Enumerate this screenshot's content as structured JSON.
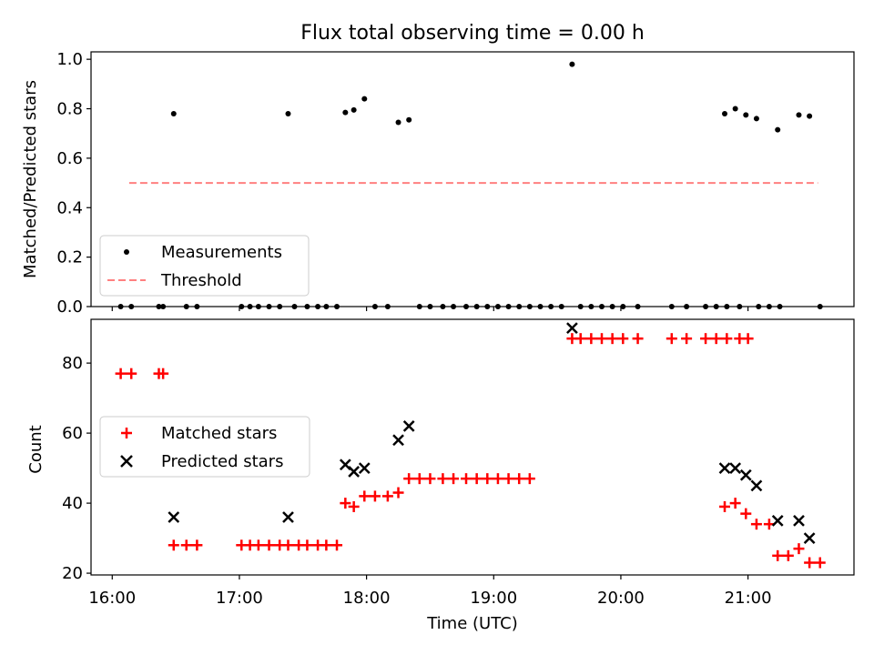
{
  "title": "Flux total observing time = 0.00 h",
  "colors": {
    "threshold": "#ff8080",
    "matched": "#ff0000",
    "predicted": "#000000",
    "measurement": "#000000"
  },
  "chart_data": [
    {
      "type": "scatter",
      "panel": "top",
      "title": "Flux total observing time = 0.00 h",
      "xlabel": "",
      "ylabel": "Matched/Predicted stars",
      "xlim": [
        "15:50",
        "21:50"
      ],
      "ylim": [
        0,
        1.03
      ],
      "yticks": [
        0.0,
        0.2,
        0.4,
        0.6,
        0.8,
        1.0
      ],
      "yticklabels": [
        "0.0",
        "0.2",
        "0.4",
        "0.6",
        "0.8",
        "1.0"
      ],
      "legend": "lower-left",
      "series": [
        {
          "name": "Measurements",
          "marker": "dot",
          "points": [
            [
              "16:04",
              0.0
            ],
            [
              "16:09",
              0.0
            ],
            [
              "16:22",
              0.0
            ],
            [
              "16:24",
              0.0
            ],
            [
              "16:29",
              0.78
            ],
            [
              "16:35",
              0.0
            ],
            [
              "16:40",
              0.0
            ],
            [
              "17:01",
              0.0
            ],
            [
              "17:05",
              0.0
            ],
            [
              "17:09",
              0.0
            ],
            [
              "17:14",
              0.0
            ],
            [
              "17:19",
              0.0
            ],
            [
              "17:23",
              0.78
            ],
            [
              "17:26",
              0.0
            ],
            [
              "17:32",
              0.0
            ],
            [
              "17:37",
              0.0
            ],
            [
              "17:41",
              0.0
            ],
            [
              "17:46",
              0.0
            ],
            [
              "17:50",
              0.785
            ],
            [
              "17:54",
              0.795
            ],
            [
              "17:59",
              0.84
            ],
            [
              "18:04",
              0.0
            ],
            [
              "18:10",
              0.0
            ],
            [
              "18:15",
              0.745
            ],
            [
              "18:20",
              0.755
            ],
            [
              "18:25",
              0.0
            ],
            [
              "18:30",
              0.0
            ],
            [
              "18:36",
              0.0
            ],
            [
              "18:41",
              0.0
            ],
            [
              "18:47",
              0.0
            ],
            [
              "18:52",
              0.0
            ],
            [
              "18:57",
              0.0
            ],
            [
              "19:02",
              0.0
            ],
            [
              "19:07",
              0.0
            ],
            [
              "19:12",
              0.0
            ],
            [
              "19:17",
              0.0
            ],
            [
              "19:22",
              0.0
            ],
            [
              "19:27",
              0.0
            ],
            [
              "19:32",
              0.0
            ],
            [
              "19:37",
              0.98
            ],
            [
              "19:41",
              0.0
            ],
            [
              "19:46",
              0.0
            ],
            [
              "19:51",
              0.0
            ],
            [
              "19:56",
              0.0
            ],
            [
              "20:01",
              0.0
            ],
            [
              "20:08",
              0.0
            ],
            [
              "20:24",
              0.0
            ],
            [
              "20:31",
              0.0
            ],
            [
              "20:40",
              0.0
            ],
            [
              "20:45",
              0.0
            ],
            [
              "20:50",
              0.0
            ],
            [
              "20:56",
              0.0
            ],
            [
              "21:05",
              0.0
            ],
            [
              "21:10",
              0.0
            ],
            [
              "21:15",
              0.0
            ],
            [
              "20:49",
              0.78
            ],
            [
              "20:54",
              0.8
            ],
            [
              "20:59",
              0.775
            ],
            [
              "21:04",
              0.76
            ],
            [
              "21:14",
              0.715
            ],
            [
              "21:24",
              0.775
            ],
            [
              "21:29",
              0.77
            ],
            [
              "21:34",
              0.0
            ]
          ]
        },
        {
          "name": "Threshold",
          "marker": "dashed-line",
          "points": [
            [
              "16:08",
              0.5
            ],
            [
              "21:33",
              0.5
            ]
          ]
        }
      ]
    },
    {
      "type": "scatter",
      "panel": "bottom",
      "xlabel": "Time (UTC)",
      "ylabel": "Count",
      "xlim": [
        "15:50",
        "21:50"
      ],
      "ylim": [
        19.5,
        92.5
      ],
      "yticks": [
        20,
        40,
        60,
        80
      ],
      "yticklabels": [
        "20",
        "40",
        "60",
        "80"
      ],
      "xticks": [
        "16:00",
        "17:00",
        "18:00",
        "19:00",
        "20:00",
        "21:00"
      ],
      "xticklabels": [
        "16:00",
        "17:00",
        "18:00",
        "19:00",
        "20:00",
        "21:00"
      ],
      "legend": "center-left",
      "series": [
        {
          "name": "Matched stars",
          "marker": "plus",
          "points": [
            [
              "16:04",
              77
            ],
            [
              "16:09",
              77
            ],
            [
              "16:22",
              77
            ],
            [
              "16:24",
              77
            ],
            [
              "16:29",
              28
            ],
            [
              "16:35",
              28
            ],
            [
              "16:40",
              28
            ],
            [
              "17:01",
              28
            ],
            [
              "17:05",
              28
            ],
            [
              "17:09",
              28
            ],
            [
              "17:14",
              28
            ],
            [
              "17:19",
              28
            ],
            [
              "17:23",
              28
            ],
            [
              "17:28",
              28
            ],
            [
              "17:32",
              28
            ],
            [
              "17:37",
              28
            ],
            [
              "17:41",
              28
            ],
            [
              "17:46",
              28
            ],
            [
              "17:50",
              40
            ],
            [
              "17:54",
              39
            ],
            [
              "17:59",
              42
            ],
            [
              "18:04",
              42
            ],
            [
              "18:10",
              42
            ],
            [
              "18:15",
              43
            ],
            [
              "18:20",
              47
            ],
            [
              "18:25",
              47
            ],
            [
              "18:30",
              47
            ],
            [
              "18:36",
              47
            ],
            [
              "18:41",
              47
            ],
            [
              "18:47",
              47
            ],
            [
              "18:52",
              47
            ],
            [
              "18:57",
              47
            ],
            [
              "19:02",
              47
            ],
            [
              "19:07",
              47
            ],
            [
              "19:12",
              47
            ],
            [
              "19:17",
              47
            ],
            [
              "19:37",
              87
            ],
            [
              "19:41",
              87
            ],
            [
              "19:46",
              87
            ],
            [
              "19:51",
              87
            ],
            [
              "19:56",
              87
            ],
            [
              "20:01",
              87
            ],
            [
              "20:08",
              87
            ],
            [
              "20:24",
              87
            ],
            [
              "20:31",
              87
            ],
            [
              "20:40",
              87
            ],
            [
              "20:45",
              87
            ],
            [
              "20:50",
              87
            ],
            [
              "20:56",
              87
            ],
            [
              "21:00",
              87
            ],
            [
              "20:49",
              39
            ],
            [
              "20:54",
              40
            ],
            [
              "20:59",
              37
            ],
            [
              "21:04",
              34
            ],
            [
              "21:10",
              34
            ],
            [
              "21:14",
              25
            ],
            [
              "21:19",
              25
            ],
            [
              "21:24",
              27
            ],
            [
              "21:29",
              23
            ],
            [
              "21:34",
              23
            ]
          ]
        },
        {
          "name": "Predicted stars",
          "marker": "x",
          "points": [
            [
              "16:29",
              36
            ],
            [
              "17:23",
              36
            ],
            [
              "17:50",
              51
            ],
            [
              "17:54",
              49
            ],
            [
              "17:59",
              50
            ],
            [
              "18:15",
              58
            ],
            [
              "18:20",
              62
            ],
            [
              "19:37",
              90
            ],
            [
              "20:49",
              50
            ],
            [
              "20:54",
              50
            ],
            [
              "20:59",
              48
            ],
            [
              "21:04",
              45
            ],
            [
              "21:14",
              35
            ],
            [
              "21:24",
              35
            ],
            [
              "21:29",
              30
            ]
          ]
        }
      ]
    }
  ]
}
